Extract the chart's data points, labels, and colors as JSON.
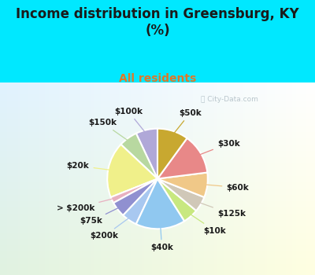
{
  "title": "Income distribution in Greensburg, KY\n(%)",
  "subtitle": "All residents",
  "labels": [
    "$100k",
    "$150k",
    "$20k",
    "> $200k",
    "$75k",
    "$200k",
    "$40k",
    "$10k",
    "$125k",
    "$60k",
    "$30k",
    "$50k"
  ],
  "values": [
    7,
    6,
    18,
    2,
    5,
    5,
    16,
    5,
    5,
    8,
    13,
    10
  ],
  "colors": [
    "#b0a8d8",
    "#b8d8a0",
    "#f0f08a",
    "#e8b0c0",
    "#9090d0",
    "#a8c8f0",
    "#90c8f0",
    "#c8e880",
    "#d0c8b8",
    "#f0c888",
    "#e88888",
    "#c8a830"
  ],
  "background_color": "#00e8ff",
  "chart_bg": "#d8ede0",
  "title_color": "#1a1a1a",
  "subtitle_color": "#e07828",
  "label_color": "#1a1a1a",
  "watermark": "City-Data.com"
}
